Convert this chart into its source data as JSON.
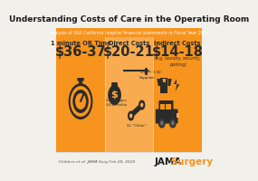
{
  "title": "Understanding Costs of Care in the Operating Room",
  "subtitle": "Analysis of 302 California hospital financial statements in Fiscal Year 2014",
  "bg_color": "#f2f0eb",
  "orange_color": "#f7941d",
  "lighter_orange": "#f9ab4f",
  "dark_color": "#2b2b2b",
  "white_color": "#ffffff",
  "col1_label": "1 minute OR Time",
  "col1_value": "$36-37",
  "col2_label": "Direct Costs",
  "col2_value": "$20-21",
  "col3_label": "Indirect Costs",
  "col3_value": "$14-18",
  "col3_sub": "(e.g. laundry, security,\nparking)",
  "direct_item1": "$2.50-$3.50\nSupplies",
  "direct_item2": "$10 Wages\n$4 Benefits",
  "direct_item3": "$1 \"Other\"",
  "citation": "Childers et al. JAMA Surg Feb 28, 2018",
  "journal_black": "JAMA",
  "journal_orange": " Surgery",
  "title_fontsize": 6.5,
  "subtitle_fontsize": 3.4,
  "label_fontsize": 4.8,
  "value_fontsize": 10.5,
  "sub_fontsize": 3.3,
  "annot_fontsize": 3.0
}
